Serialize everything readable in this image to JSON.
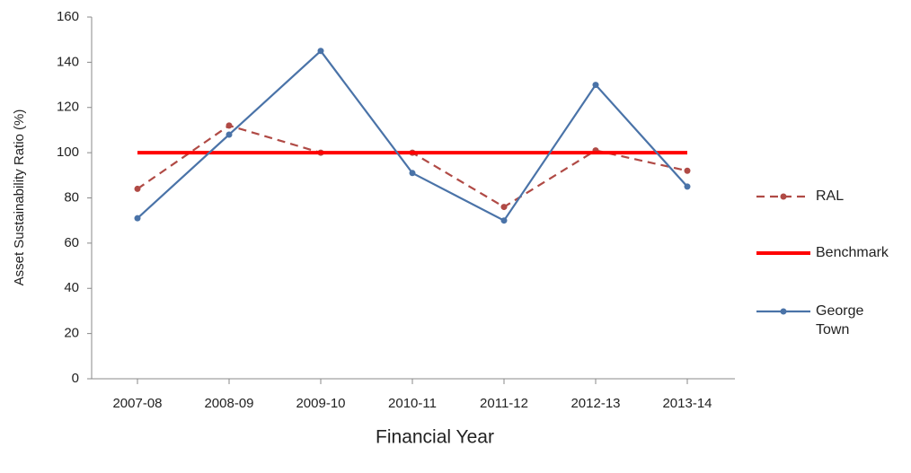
{
  "chart_data": {
    "type": "line",
    "y_label": "Asset Sustainability Ratio (%)",
    "x_label": "Financial Year",
    "categories": [
      "2007-08",
      "2008-09",
      "2009-10",
      "2010-11",
      "2011-12",
      "2012-13",
      "2013-14"
    ],
    "series": [
      {
        "name": "RAL",
        "color": "#b04a45",
        "line_style": "dashed",
        "markers": true,
        "values": [
          84,
          112,
          100,
          100,
          76,
          101,
          92
        ]
      },
      {
        "name": "Benchmark",
        "color": "#ff0000",
        "line_style": "solid",
        "markers": false,
        "values": [
          100,
          100,
          100,
          100,
          100,
          100,
          100
        ]
      },
      {
        "name": "George Town",
        "color": "#4a73a8",
        "line_style": "solid",
        "markers": true,
        "values": [
          71,
          108,
          145,
          91,
          70,
          130,
          85
        ]
      }
    ],
    "ylim": [
      0,
      160
    ],
    "yticks": [
      0,
      20,
      40,
      60,
      80,
      100,
      120,
      140,
      160
    ],
    "grid": false,
    "legend": "right"
  }
}
